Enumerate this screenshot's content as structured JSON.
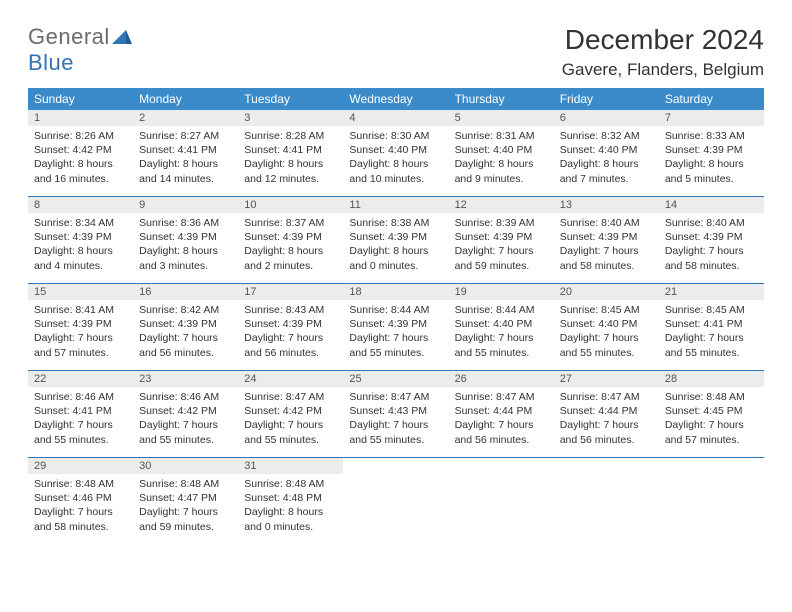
{
  "logo": {
    "text1": "General",
    "text2": "Blue"
  },
  "title": "December 2024",
  "location": "Gavere, Flanders, Belgium",
  "columns": [
    "Sunday",
    "Monday",
    "Tuesday",
    "Wednesday",
    "Thursday",
    "Friday",
    "Saturday"
  ],
  "colors": {
    "header_bg": "#3b8bca",
    "header_text": "#ffffff",
    "daynum_bg": "#ececec",
    "row_border": "#2f74b5",
    "logo_gray": "#6b6b6b",
    "logo_blue": "#2f74b5",
    "page_bg": "#ffffff"
  },
  "fonts": {
    "title_size_pt": 21,
    "location_size_pt": 13,
    "header_size_pt": 9,
    "body_size_pt": 8
  },
  "weeks": [
    [
      {
        "n": "1",
        "sr": "Sunrise: 8:26 AM",
        "ss": "Sunset: 4:42 PM",
        "d1": "Daylight: 8 hours",
        "d2": "and 16 minutes."
      },
      {
        "n": "2",
        "sr": "Sunrise: 8:27 AM",
        "ss": "Sunset: 4:41 PM",
        "d1": "Daylight: 8 hours",
        "d2": "and 14 minutes."
      },
      {
        "n": "3",
        "sr": "Sunrise: 8:28 AM",
        "ss": "Sunset: 4:41 PM",
        "d1": "Daylight: 8 hours",
        "d2": "and 12 minutes."
      },
      {
        "n": "4",
        "sr": "Sunrise: 8:30 AM",
        "ss": "Sunset: 4:40 PM",
        "d1": "Daylight: 8 hours",
        "d2": "and 10 minutes."
      },
      {
        "n": "5",
        "sr": "Sunrise: 8:31 AM",
        "ss": "Sunset: 4:40 PM",
        "d1": "Daylight: 8 hours",
        "d2": "and 9 minutes."
      },
      {
        "n": "6",
        "sr": "Sunrise: 8:32 AM",
        "ss": "Sunset: 4:40 PM",
        "d1": "Daylight: 8 hours",
        "d2": "and 7 minutes."
      },
      {
        "n": "7",
        "sr": "Sunrise: 8:33 AM",
        "ss": "Sunset: 4:39 PM",
        "d1": "Daylight: 8 hours",
        "d2": "and 5 minutes."
      }
    ],
    [
      {
        "n": "8",
        "sr": "Sunrise: 8:34 AM",
        "ss": "Sunset: 4:39 PM",
        "d1": "Daylight: 8 hours",
        "d2": "and 4 minutes."
      },
      {
        "n": "9",
        "sr": "Sunrise: 8:36 AM",
        "ss": "Sunset: 4:39 PM",
        "d1": "Daylight: 8 hours",
        "d2": "and 3 minutes."
      },
      {
        "n": "10",
        "sr": "Sunrise: 8:37 AM",
        "ss": "Sunset: 4:39 PM",
        "d1": "Daylight: 8 hours",
        "d2": "and 2 minutes."
      },
      {
        "n": "11",
        "sr": "Sunrise: 8:38 AM",
        "ss": "Sunset: 4:39 PM",
        "d1": "Daylight: 8 hours",
        "d2": "and 0 minutes."
      },
      {
        "n": "12",
        "sr": "Sunrise: 8:39 AM",
        "ss": "Sunset: 4:39 PM",
        "d1": "Daylight: 7 hours",
        "d2": "and 59 minutes."
      },
      {
        "n": "13",
        "sr": "Sunrise: 8:40 AM",
        "ss": "Sunset: 4:39 PM",
        "d1": "Daylight: 7 hours",
        "d2": "and 58 minutes."
      },
      {
        "n": "14",
        "sr": "Sunrise: 8:40 AM",
        "ss": "Sunset: 4:39 PM",
        "d1": "Daylight: 7 hours",
        "d2": "and 58 minutes."
      }
    ],
    [
      {
        "n": "15",
        "sr": "Sunrise: 8:41 AM",
        "ss": "Sunset: 4:39 PM",
        "d1": "Daylight: 7 hours",
        "d2": "and 57 minutes."
      },
      {
        "n": "16",
        "sr": "Sunrise: 8:42 AM",
        "ss": "Sunset: 4:39 PM",
        "d1": "Daylight: 7 hours",
        "d2": "and 56 minutes."
      },
      {
        "n": "17",
        "sr": "Sunrise: 8:43 AM",
        "ss": "Sunset: 4:39 PM",
        "d1": "Daylight: 7 hours",
        "d2": "and 56 minutes."
      },
      {
        "n": "18",
        "sr": "Sunrise: 8:44 AM",
        "ss": "Sunset: 4:39 PM",
        "d1": "Daylight: 7 hours",
        "d2": "and 55 minutes."
      },
      {
        "n": "19",
        "sr": "Sunrise: 8:44 AM",
        "ss": "Sunset: 4:40 PM",
        "d1": "Daylight: 7 hours",
        "d2": "and 55 minutes."
      },
      {
        "n": "20",
        "sr": "Sunrise: 8:45 AM",
        "ss": "Sunset: 4:40 PM",
        "d1": "Daylight: 7 hours",
        "d2": "and 55 minutes."
      },
      {
        "n": "21",
        "sr": "Sunrise: 8:45 AM",
        "ss": "Sunset: 4:41 PM",
        "d1": "Daylight: 7 hours",
        "d2": "and 55 minutes."
      }
    ],
    [
      {
        "n": "22",
        "sr": "Sunrise: 8:46 AM",
        "ss": "Sunset: 4:41 PM",
        "d1": "Daylight: 7 hours",
        "d2": "and 55 minutes."
      },
      {
        "n": "23",
        "sr": "Sunrise: 8:46 AM",
        "ss": "Sunset: 4:42 PM",
        "d1": "Daylight: 7 hours",
        "d2": "and 55 minutes."
      },
      {
        "n": "24",
        "sr": "Sunrise: 8:47 AM",
        "ss": "Sunset: 4:42 PM",
        "d1": "Daylight: 7 hours",
        "d2": "and 55 minutes."
      },
      {
        "n": "25",
        "sr": "Sunrise: 8:47 AM",
        "ss": "Sunset: 4:43 PM",
        "d1": "Daylight: 7 hours",
        "d2": "and 55 minutes."
      },
      {
        "n": "26",
        "sr": "Sunrise: 8:47 AM",
        "ss": "Sunset: 4:44 PM",
        "d1": "Daylight: 7 hours",
        "d2": "and 56 minutes."
      },
      {
        "n": "27",
        "sr": "Sunrise: 8:47 AM",
        "ss": "Sunset: 4:44 PM",
        "d1": "Daylight: 7 hours",
        "d2": "and 56 minutes."
      },
      {
        "n": "28",
        "sr": "Sunrise: 8:48 AM",
        "ss": "Sunset: 4:45 PM",
        "d1": "Daylight: 7 hours",
        "d2": "and 57 minutes."
      }
    ],
    [
      {
        "n": "29",
        "sr": "Sunrise: 8:48 AM",
        "ss": "Sunset: 4:46 PM",
        "d1": "Daylight: 7 hours",
        "d2": "and 58 minutes."
      },
      {
        "n": "30",
        "sr": "Sunrise: 8:48 AM",
        "ss": "Sunset: 4:47 PM",
        "d1": "Daylight: 7 hours",
        "d2": "and 59 minutes."
      },
      {
        "n": "31",
        "sr": "Sunrise: 8:48 AM",
        "ss": "Sunset: 4:48 PM",
        "d1": "Daylight: 8 hours",
        "d2": "and 0 minutes."
      },
      {
        "empty": true
      },
      {
        "empty": true
      },
      {
        "empty": true
      },
      {
        "empty": true
      }
    ]
  ]
}
